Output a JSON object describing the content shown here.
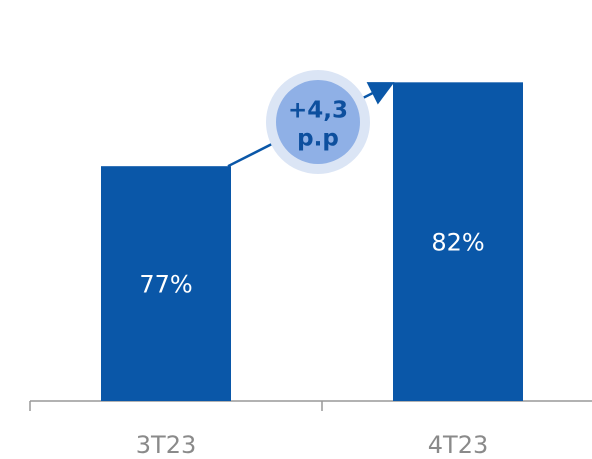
{
  "chart_data": {
    "type": "bar",
    "categories": [
      "3T23",
      "4T23"
    ],
    "values": [
      77,
      82
    ],
    "value_labels": [
      "77%",
      "82%"
    ],
    "color": "#0a57a8",
    "ylim": [
      63,
      85
    ],
    "annotation": [
      "+4,3",
      "p.p"
    ]
  }
}
